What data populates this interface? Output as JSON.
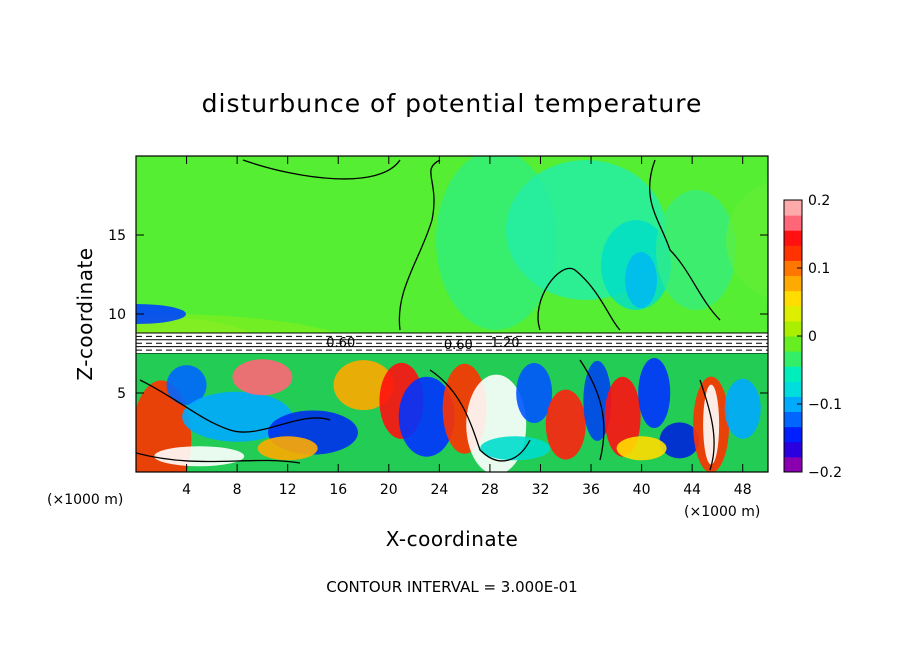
{
  "chart_data": {
    "type": "heatmap",
    "title": "disturbunce of potential temperature",
    "xlabel": "X-coordinate",
    "ylabel": "Z-coordinate",
    "x_unit": "(×1000 m)",
    "y_unit": "(×1000 m)",
    "xlim": [
      0,
      50
    ],
    "ylim": [
      0,
      20
    ],
    "x_ticks": [
      4,
      8,
      12,
      16,
      20,
      24,
      28,
      32,
      36,
      40,
      44,
      48
    ],
    "y_ticks": [
      5,
      10,
      15
    ],
    "colorbar": {
      "range": [
        -0.2,
        0.2
      ],
      "tick_values": [
        0.2,
        0.1,
        0,
        -0.1,
        -0.2
      ],
      "tick_labels": [
        "0.2",
        "0.1",
        "0",
        "−0.1",
        "−0.2"
      ],
      "colors": [
        "#8a00b0",
        "#2a00e0",
        "#0020ff",
        "#0066ff",
        "#00aaff",
        "#00dddd",
        "#00eebb",
        "#33ee66",
        "#66ee22",
        "#aaee00",
        "#ddee00",
        "#ffdd00",
        "#ffaa00",
        "#ff7700",
        "#ff3300",
        "#ff1111",
        "#ff6677",
        "#ffaaaa"
      ]
    },
    "contour_labels": [
      {
        "text": "0.60",
        "x": 16.2,
        "z": 7.9
      },
      {
        "text": "0.60",
        "x": 25.5,
        "z": 7.8
      },
      {
        "text": "1.20",
        "x": 29.2,
        "z": 7.9
      }
    ],
    "regions": {
      "upper_layer_z": [
        8.8,
        20
      ],
      "inversion_layer_z": [
        7.5,
        8.8
      ],
      "lower_layer_z": [
        0,
        7.5
      ]
    }
  },
  "footer": {
    "contour_interval": "CONTOUR INTERVAL = 3.000E-01"
  }
}
